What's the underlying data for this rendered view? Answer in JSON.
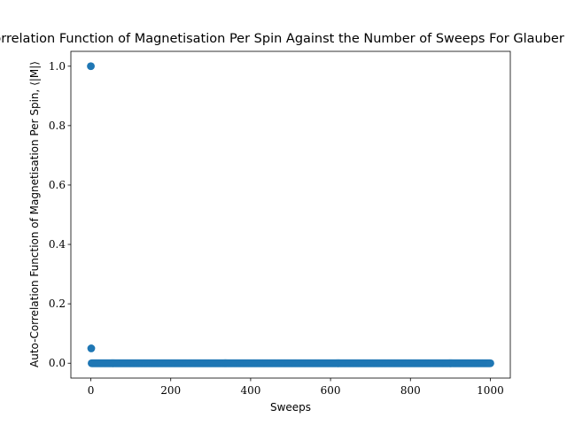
{
  "chart_data": {
    "type": "scatter",
    "title": "Auto-Correlation Function of Magnetisation Per Spin Against the Number of Sweeps For Glauber Dynamics",
    "xlabel": "Sweeps",
    "ylabel": "Auto-Correlation Function of Magnetisation Per Spin, ⟨|M|⟩",
    "xlim": [
      -50,
      1050
    ],
    "ylim": [
      -0.05,
      1.05
    ],
    "xticks": [
      0,
      200,
      400,
      600,
      800,
      1000
    ],
    "xtick_labels": [
      "0",
      "200",
      "400",
      "600",
      "800",
      "1000"
    ],
    "yticks": [
      0.0,
      0.2,
      0.4,
      0.6,
      0.8,
      1.0
    ],
    "ytick_labels": [
      "0.0",
      "0.2",
      "0.4",
      "0.6",
      "0.8",
      "1.0"
    ],
    "grid": false,
    "marker_color": "#1f77b4",
    "series": [
      {
        "points": [
          [
            0,
            1.0
          ],
          [
            1,
            0.05
          ]
        ],
        "constant_run": {
          "x_start": 2,
          "x_end": 1000,
          "y": 0.0
        }
      }
    ]
  }
}
